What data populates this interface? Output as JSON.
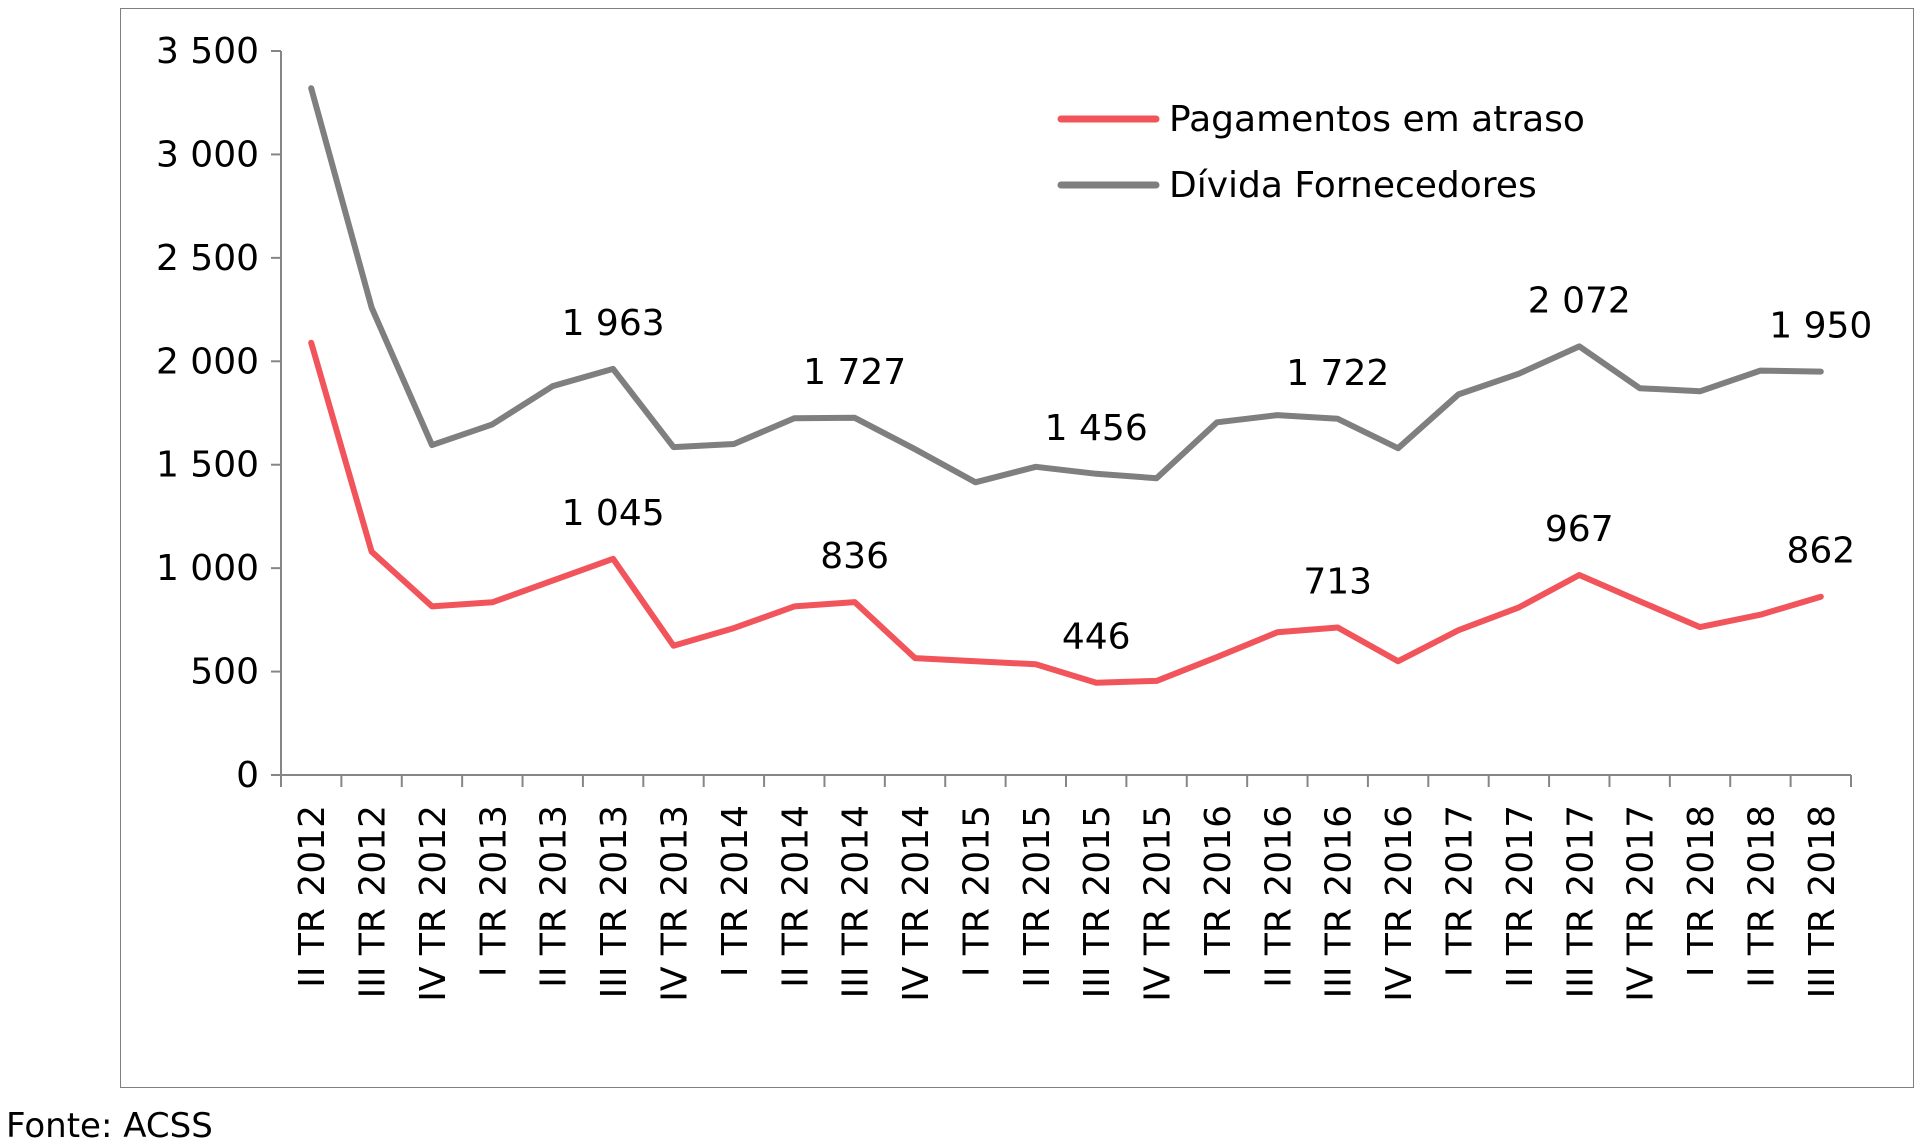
{
  "source_note": "Fonte: ACSS",
  "chart_data": {
    "type": "line",
    "title": "",
    "xlabel": "",
    "ylabel": "",
    "ylim": [
      0,
      3500
    ],
    "yticks": [
      0,
      500,
      1000,
      1500,
      2000,
      2500,
      3000,
      3500
    ],
    "ytick_labels": [
      "0",
      "500",
      "1 000",
      "1 500",
      "2 000",
      "2 500",
      "3 000",
      "3 500"
    ],
    "grid": false,
    "legend_position": "top-right",
    "categories": [
      "II TR 2012",
      "III TR 2012",
      "IV TR 2012",
      "I TR 2013",
      "II TR 2013",
      "III TR 2013",
      "IV TR 2013",
      "I TR 2014",
      "II TR 2014",
      "III TR 2014",
      "IV TR 2014",
      "I TR 2015",
      "II TR 2015",
      "III TR 2015",
      "IV TR 2015",
      "I TR 2016",
      "II TR 2016",
      "III TR 2016",
      "IV TR 2016",
      "I TR 2017",
      "II TR 2017",
      "III TR 2017",
      "IV TR 2017",
      "I TR 2018",
      "II TR 2018",
      "III TR 2018"
    ],
    "series": [
      {
        "name": "Pagamentos em atraso",
        "color": "#f2545b",
        "values": [
          2090,
          1080,
          815,
          835,
          940,
          1045,
          625,
          710,
          815,
          836,
          565,
          550,
          535,
          446,
          455,
          570,
          690,
          713,
          550,
          700,
          810,
          967,
          840,
          715,
          775,
          862
        ],
        "labels": [
          {
            "index": 5,
            "text": "1 045"
          },
          {
            "index": 9,
            "text": "836"
          },
          {
            "index": 13,
            "text": "446"
          },
          {
            "index": 17,
            "text": "713"
          },
          {
            "index": 21,
            "text": "967"
          },
          {
            "index": 25,
            "text": "862"
          }
        ]
      },
      {
        "name": "Dívida Fornecedores",
        "color": "#7f7f7f",
        "values": [
          3320,
          2260,
          1595,
          1695,
          1880,
          1963,
          1585,
          1600,
          1725,
          1727,
          1575,
          1415,
          1490,
          1456,
          1435,
          1705,
          1740,
          1722,
          1580,
          1840,
          1940,
          2072,
          1870,
          1855,
          1955,
          1950
        ],
        "labels": [
          {
            "index": 5,
            "text": "1 963"
          },
          {
            "index": 9,
            "text": "1 727"
          },
          {
            "index": 13,
            "text": "1 456"
          },
          {
            "index": 17,
            "text": "1 722"
          },
          {
            "index": 21,
            "text": "2 072"
          },
          {
            "index": 25,
            "text": "1 950"
          }
        ]
      }
    ]
  }
}
